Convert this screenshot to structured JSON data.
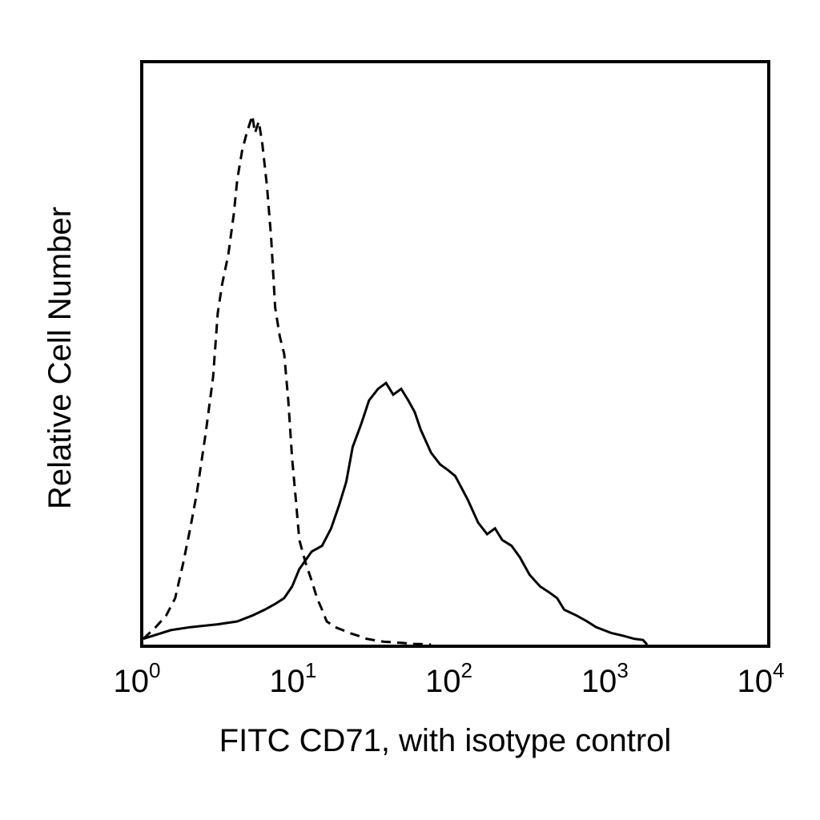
{
  "chart_data": {
    "type": "line",
    "title": "",
    "xlabel": "FITC CD71, with isotype control",
    "ylabel": "Relative Cell Number",
    "x_scale": "log",
    "xlim": [
      1,
      10000
    ],
    "ylim": [
      0,
      100
    ],
    "grid": false,
    "legend": "none",
    "x_ticks": [
      {
        "base": "10",
        "exp": "0"
      },
      {
        "base": "10",
        "exp": "1"
      },
      {
        "base": "10",
        "exp": "2"
      },
      {
        "base": "10",
        "exp": "3"
      },
      {
        "base": "10",
        "exp": "4"
      }
    ],
    "series": [
      {
        "style": "dashed",
        "color": "#000000",
        "x": [
          1.0,
          1.2,
          1.4,
          1.6,
          1.8,
          2.0,
          2.2,
          2.5,
          2.8,
          3.0,
          3.2,
          3.5,
          3.8,
          4.0,
          4.3,
          4.6,
          5.0,
          5.2,
          5.5,
          5.8,
          6.2,
          6.6,
          7.0,
          7.5,
          8.0,
          8.5,
          9.0,
          9.5,
          10.0,
          11.0,
          12.0,
          13.0,
          14.0,
          15.0,
          17.0,
          19.0,
          21.0,
          24.0,
          27.0,
          31.0,
          35.0,
          40.0,
          45.0,
          50.0,
          55.0,
          60.0,
          70.0
        ],
        "y": [
          1.0,
          3.0,
          5.0,
          8.0,
          14.0,
          20.0,
          26.0,
          36.0,
          46.0,
          57.0,
          62.0,
          67.0,
          74.0,
          80.0,
          85.0,
          88.0,
          91.0,
          88.0,
          90.0,
          86.0,
          79.0,
          70.0,
          58.0,
          53.0,
          50.0,
          42.0,
          32.0,
          25.0,
          18.0,
          14.0,
          11.0,
          8.0,
          6.0,
          4.0,
          3.0,
          2.5,
          2.0,
          1.5,
          1.0,
          0.7,
          0.5,
          0.4,
          0.3,
          0.2,
          0.1,
          0.1,
          0.0
        ]
      },
      {
        "style": "solid",
        "color": "#000000",
        "x": [
          1.0,
          1.5,
          2.0,
          3.0,
          4.0,
          5.0,
          6.0,
          7.0,
          8.0,
          9.0,
          10.0,
          12.0,
          14.0,
          16.0,
          18.0,
          20.0,
          22.0,
          25.0,
          28.0,
          32.0,
          36.0,
          40.0,
          45.0,
          50.0,
          55.0,
          60.0,
          70.0,
          80.0,
          90.0,
          100.0,
          120.0,
          140.0,
          160.0,
          180.0,
          200.0,
          230.0,
          260.0,
          300.0,
          350.0,
          400.0,
          450.0,
          500.0,
          600.0,
          700.0,
          800.0,
          1000.0,
          1200.0,
          1400.0,
          1600.0,
          1700.0
        ],
        "y": [
          1.0,
          2.5,
          3.0,
          3.5,
          4.0,
          5.0,
          6.0,
          7.0,
          8.0,
          10.0,
          13.0,
          16.0,
          17.0,
          20.0,
          24.0,
          28.0,
          34.0,
          38.0,
          42.0,
          44.0,
          45.0,
          43.0,
          44.0,
          42.0,
          40.0,
          37.0,
          33.0,
          31.0,
          30.0,
          29.0,
          25.0,
          21.0,
          19.0,
          20.0,
          18.0,
          17.0,
          15.0,
          12.0,
          10.0,
          9.0,
          8.0,
          6.0,
          5.0,
          4.0,
          3.0,
          2.0,
          1.5,
          1.0,
          0.8,
          0.0
        ]
      }
    ]
  }
}
